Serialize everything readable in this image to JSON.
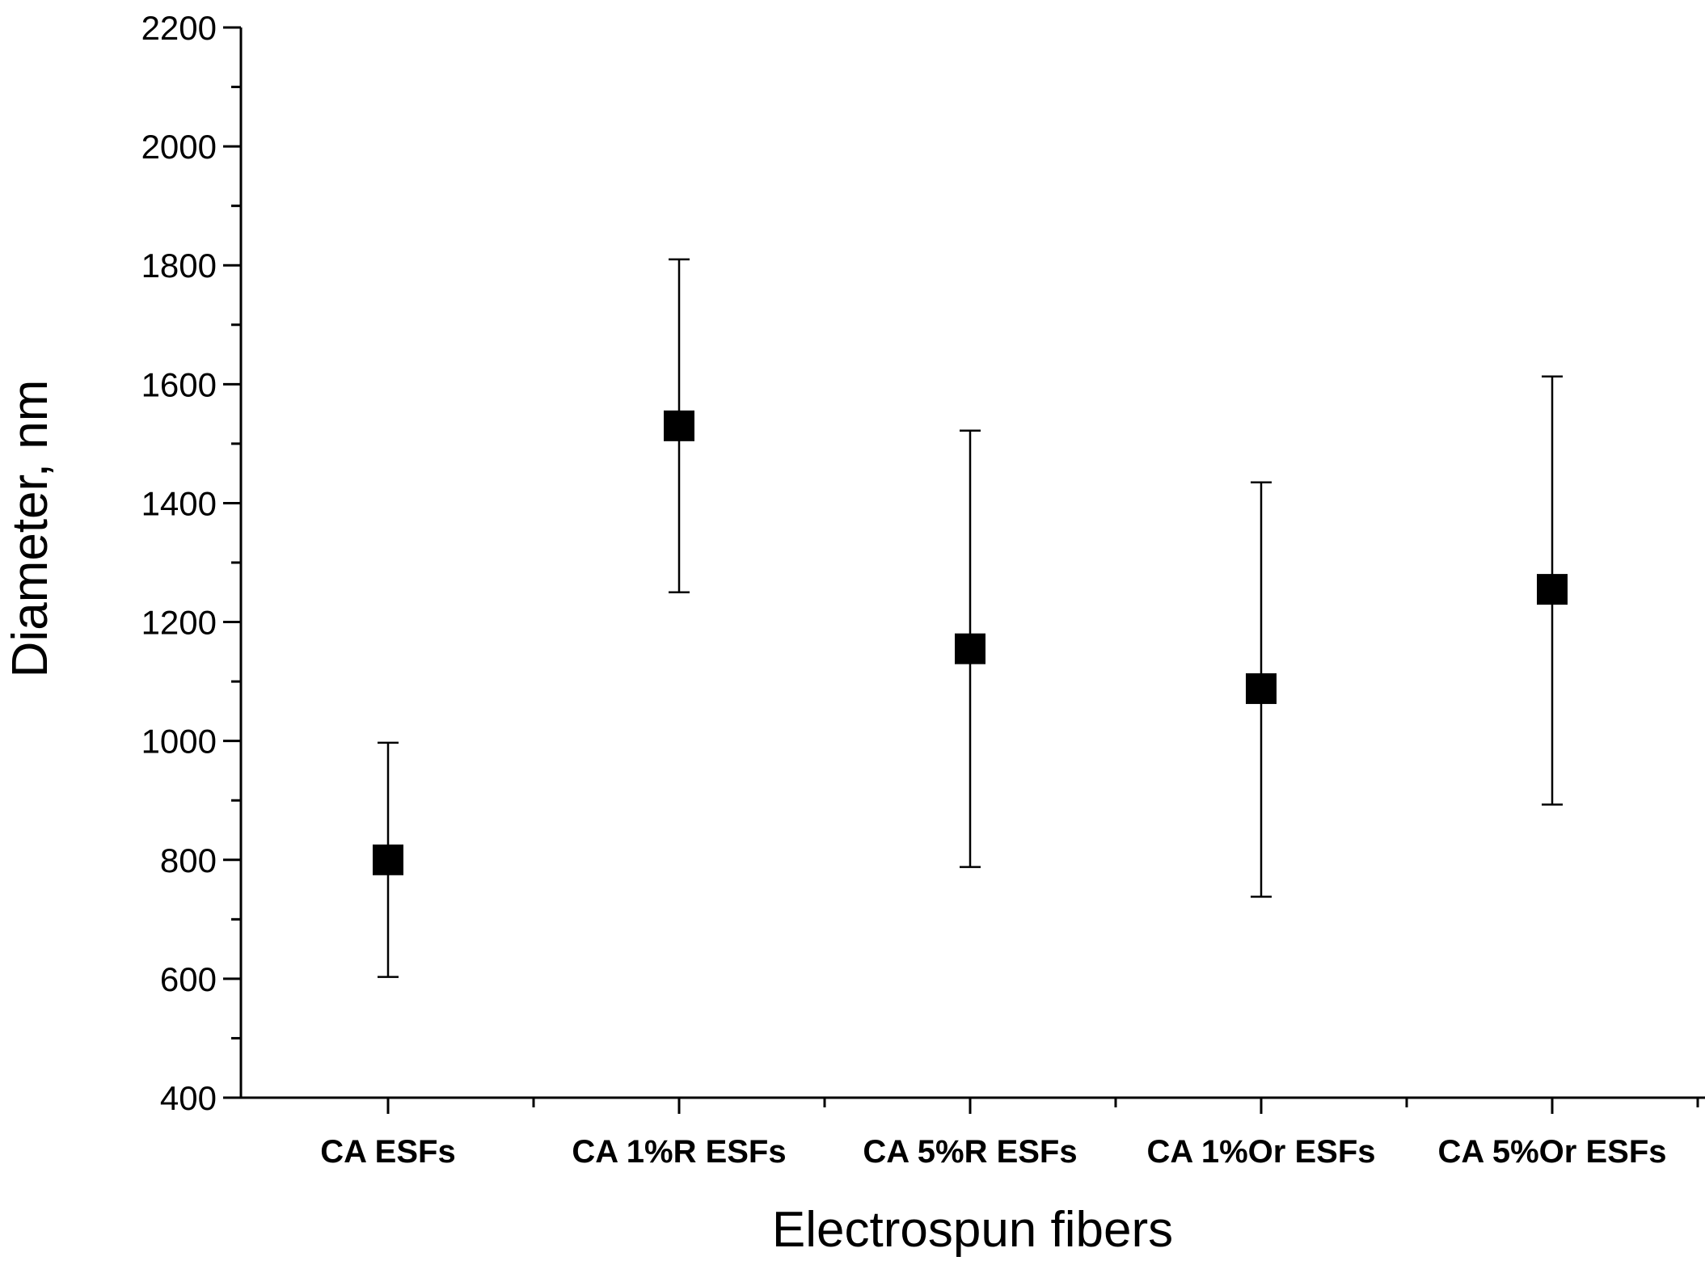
{
  "chart_data": {
    "type": "scatter",
    "title": "",
    "xlabel": "Electrospun fibers",
    "ylabel": "Diameter, nm",
    "categories": [
      "CA ESFs",
      "CA 1%R ESFs",
      "CA 5%R ESFs",
      "CA 1%Or ESFs",
      "CA 5%Or ESFs"
    ],
    "values": [
      800,
      1530,
      1155,
      1088,
      1255
    ],
    "error_low": [
      603,
      1250,
      788,
      738,
      893
    ],
    "error_high": [
      997,
      1810,
      1522,
      1435,
      1613
    ],
    "ylim": [
      400,
      2200
    ],
    "yticks": [
      400,
      600,
      800,
      1000,
      1200,
      1400,
      1600,
      1800,
      2000,
      2200
    ],
    "grid": false,
    "legend": "none",
    "marker": "square",
    "color": "#000000"
  }
}
